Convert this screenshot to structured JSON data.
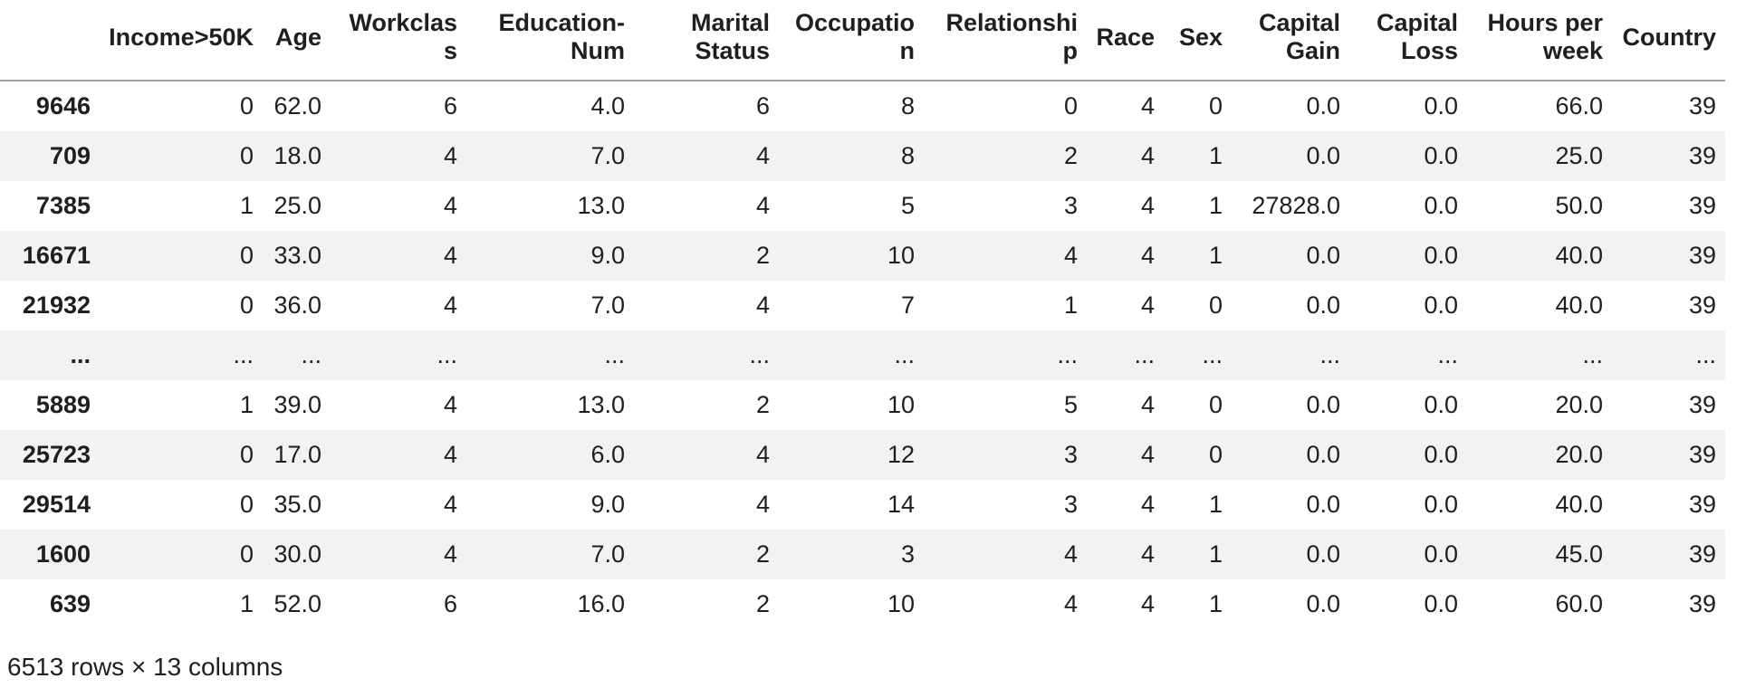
{
  "table": {
    "columns": [
      "",
      "Income>50K",
      "Age",
      "Workclass",
      "Education-Num",
      "Marital Status",
      "Occupation",
      "Relationship",
      "Race",
      "Sex",
      "Capital Gain",
      "Capital Loss",
      "Hours per week",
      "Country"
    ],
    "rows": [
      {
        "index": "9646",
        "cells": [
          "0",
          "62.0",
          "6",
          "4.0",
          "6",
          "8",
          "0",
          "4",
          "0",
          "0.0",
          "0.0",
          "66.0",
          "39"
        ]
      },
      {
        "index": "709",
        "cells": [
          "0",
          "18.0",
          "4",
          "7.0",
          "4",
          "8",
          "2",
          "4",
          "1",
          "0.0",
          "0.0",
          "25.0",
          "39"
        ]
      },
      {
        "index": "7385",
        "cells": [
          "1",
          "25.0",
          "4",
          "13.0",
          "4",
          "5",
          "3",
          "4",
          "1",
          "27828.0",
          "0.0",
          "50.0",
          "39"
        ]
      },
      {
        "index": "16671",
        "cells": [
          "0",
          "33.0",
          "4",
          "9.0",
          "2",
          "10",
          "4",
          "4",
          "1",
          "0.0",
          "0.0",
          "40.0",
          "39"
        ]
      },
      {
        "index": "21932",
        "cells": [
          "0",
          "36.0",
          "4",
          "7.0",
          "4",
          "7",
          "1",
          "4",
          "0",
          "0.0",
          "0.0",
          "40.0",
          "39"
        ]
      },
      {
        "index": "...",
        "cells": [
          "...",
          "...",
          "...",
          "...",
          "...",
          "...",
          "...",
          "...",
          "...",
          "...",
          "...",
          "...",
          "..."
        ]
      },
      {
        "index": "5889",
        "cells": [
          "1",
          "39.0",
          "4",
          "13.0",
          "2",
          "10",
          "5",
          "4",
          "0",
          "0.0",
          "0.0",
          "20.0",
          "39"
        ]
      },
      {
        "index": "25723",
        "cells": [
          "0",
          "17.0",
          "4",
          "6.0",
          "4",
          "12",
          "3",
          "4",
          "0",
          "0.0",
          "0.0",
          "20.0",
          "39"
        ]
      },
      {
        "index": "29514",
        "cells": [
          "0",
          "35.0",
          "4",
          "9.0",
          "4",
          "14",
          "3",
          "4",
          "1",
          "0.0",
          "0.0",
          "40.0",
          "39"
        ]
      },
      {
        "index": "1600",
        "cells": [
          "0",
          "30.0",
          "4",
          "7.0",
          "2",
          "3",
          "4",
          "4",
          "1",
          "0.0",
          "0.0",
          "45.0",
          "39"
        ]
      },
      {
        "index": "639",
        "cells": [
          "1",
          "52.0",
          "6",
          "16.0",
          "2",
          "10",
          "4",
          "4",
          "1",
          "0.0",
          "0.0",
          "60.0",
          "39"
        ]
      }
    ],
    "footer": "6513 rows × 13 columns"
  },
  "colors": {
    "text": "#1f1f1f",
    "row_stripe": "#f2f2f2",
    "header_border": "#a3a3a3",
    "background": "#ffffff"
  }
}
